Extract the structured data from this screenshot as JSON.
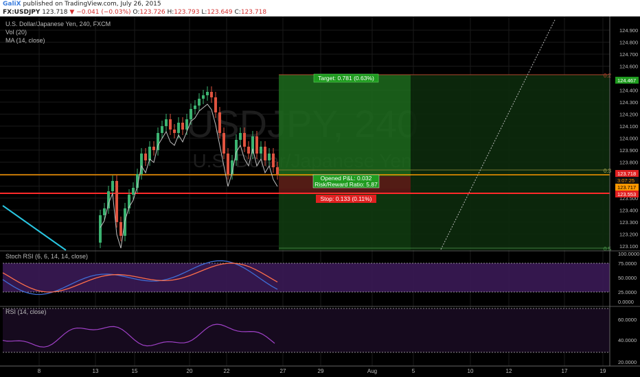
{
  "header": {
    "author": "GaliX",
    "published_text": "published on TradingView.com, July 26, 2015",
    "symbol": "FX:USDJPY",
    "last": "123.718",
    "change_arrow": "▼",
    "change": "−0.041 (−0.03%)",
    "o_label": "O:",
    "o": "123.726",
    "h_label": "H:",
    "h": "123.793",
    "l_label": "L:",
    "l": "123.649",
    "c_label": "C:",
    "c": "123.718"
  },
  "main_pane": {
    "title": "U.S. Dollar/Japanese Yen, 240, FXCM",
    "vol_label": "Vol (20)",
    "ma_label": "MA (14, close)",
    "watermark_symbol": "USDJPY, 240",
    "watermark_name": "U.S. Dollar/Japanese Yen"
  },
  "stoch_pane": {
    "label": "Stoch RSI (6, 6, 14, 14, close)"
  },
  "rsi_pane": {
    "label": "RSI (14, close)"
  },
  "position_tool": {
    "target_label": "Target: 0.781 (0.63%)",
    "pnl_label": "Opened P&L: 0.032",
    "rr_label": "Risk/Reward Ratio: 5.87",
    "stop_label": "Stop: 0.133 (0.11%)"
  },
  "fib_labels": [
    "0.2",
    "0.3",
    "0.5"
  ],
  "price_axis": {
    "ticks": [
      "124.900",
      "124.800",
      "124.700",
      "124.600",
      "124.500",
      "124.400",
      "124.300",
      "124.200",
      "124.100",
      "124.000",
      "123.900",
      "123.800",
      "123.700",
      "123.600",
      "123.500",
      "123.400",
      "123.300",
      "123.200",
      "123.100"
    ],
    "badges": [
      "124.467",
      "123.718",
      "3:07:25",
      "123.717",
      "123.553"
    ]
  },
  "stoch_axis": {
    "ticks": [
      "100.0000",
      "75.0000",
      "50.0000",
      "25.0000",
      "0.0000"
    ]
  },
  "rsi_axis": {
    "ticks": [
      "60.0000",
      "40.0000",
      "20.0000"
    ]
  },
  "time_axis": {
    "ticks": [
      "8",
      "13",
      "15",
      "20",
      "22",
      "27",
      "29",
      "Aug",
      "5",
      "10",
      "12",
      "17",
      "19"
    ]
  },
  "colors": {
    "background": "#000000",
    "up_candle": "#3cb371",
    "down_candle": "#e0533f",
    "target_zone": "#1d6b1d",
    "stop_zone": "#7a1a1a",
    "stop_line": "#ff2a2a",
    "entry_line": "#ff9800",
    "trend_line": "#29c5e0",
    "stoch_bg": "#3a1a55",
    "stoch_k": "#3f6fd8",
    "stoch_d": "#ff6f4a",
    "rsi_line": "#a041c8"
  }
}
